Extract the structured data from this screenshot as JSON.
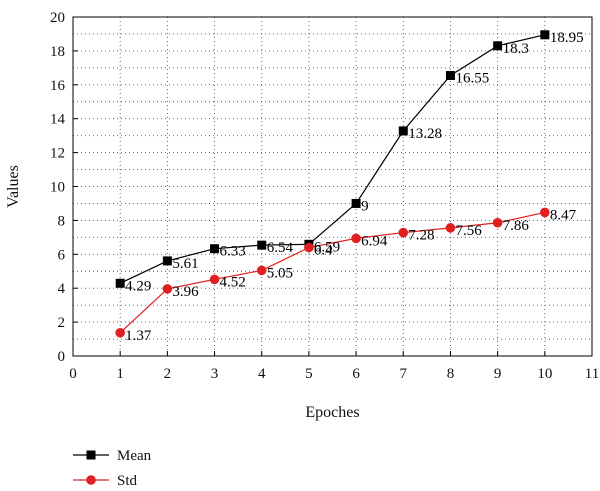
{
  "chart_data": {
    "type": "line",
    "title": "",
    "xlabel": "Epoches",
    "ylabel": "Values",
    "xlim": [
      0,
      11
    ],
    "ylim": [
      0,
      20
    ],
    "x_ticks": [
      0,
      1,
      2,
      3,
      4,
      5,
      6,
      7,
      8,
      9,
      10,
      11
    ],
    "y_ticks": [
      0,
      2,
      4,
      6,
      8,
      10,
      12,
      14,
      16,
      18,
      20
    ],
    "grid": "dotted",
    "legend_position": "bottom-left",
    "x": [
      1,
      2,
      3,
      4,
      5,
      6,
      7,
      8,
      9,
      10
    ],
    "series": [
      {
        "name": "Mean",
        "color": "#000000",
        "marker": "square",
        "values": [
          4.29,
          5.61,
          6.33,
          6.54,
          6.59,
          9,
          13.28,
          16.55,
          18.3,
          18.95
        ],
        "labels": [
          "4.29",
          "5.61",
          "6.33",
          "6.54",
          "6.59",
          "9",
          "13.28",
          "16.55",
          "18.3",
          "18.95"
        ]
      },
      {
        "name": "Std",
        "color": "#e02020",
        "marker": "circle",
        "values": [
          1.37,
          3.96,
          4.52,
          5.05,
          6.4,
          6.94,
          7.28,
          7.56,
          7.86,
          8.47
        ],
        "labels": [
          "1.37",
          "3.96",
          "4.52",
          "5.05",
          "6.4",
          "6.94",
          "7.28",
          "7.56",
          "7.86",
          "8.47"
        ]
      }
    ]
  }
}
